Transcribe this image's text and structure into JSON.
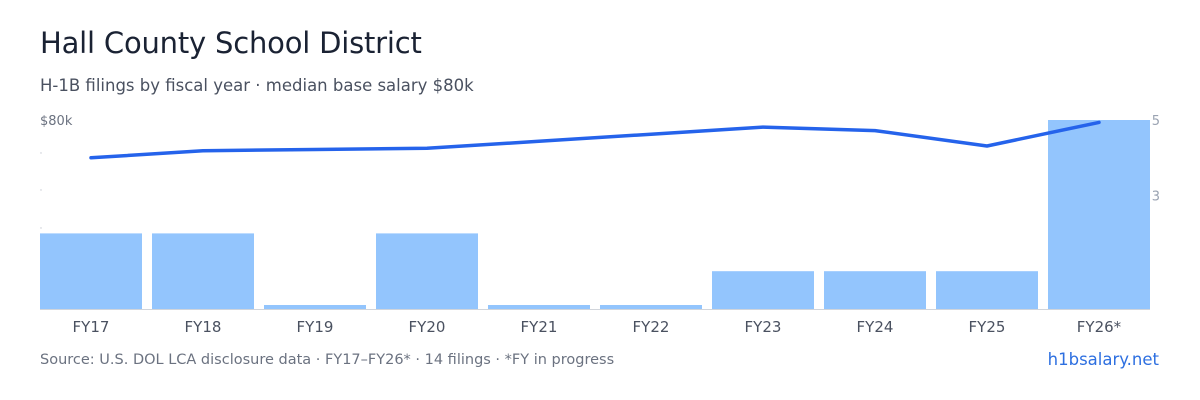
{
  "header": {
    "title": "Hall County School District",
    "subtitle": "H-1B filings by fiscal year · median base salary $80k"
  },
  "footer": {
    "source": "Source: U.S. DOL LCA disclosure data · FY17–FY26* · 14 filings · *FY in progress",
    "brand": "h1bsalary.net"
  },
  "colors": {
    "bar": "#93c5fd",
    "line": "#2563eb",
    "axis_text": "#6b7280",
    "right_axis_text": "#9aa3b2"
  },
  "chart_data": {
    "type": "bar",
    "categories": [
      "FY17",
      "FY18",
      "FY19",
      "FY20",
      "FY21",
      "FY22",
      "FY23",
      "FY24",
      "FY25",
      "FY26*"
    ],
    "series": [
      {
        "type": "bar",
        "axis": "right",
        "values": [
          2,
          2,
          0,
          2,
          0,
          0,
          1,
          1,
          1,
          5
        ]
      },
      {
        "type": "line",
        "axis": "left",
        "values": [
          64,
          67,
          67.5,
          68,
          71,
          74,
          77,
          75.5,
          69,
          79
        ]
      }
    ],
    "left_axis": {
      "tick_labels": [
        "$80k"
      ],
      "range": [
        0,
        80
      ]
    },
    "right_axis": {
      "tick_labels": [
        "5",
        "3"
      ],
      "range": [
        0,
        5
      ]
    },
    "grid": false,
    "legend": "none"
  }
}
